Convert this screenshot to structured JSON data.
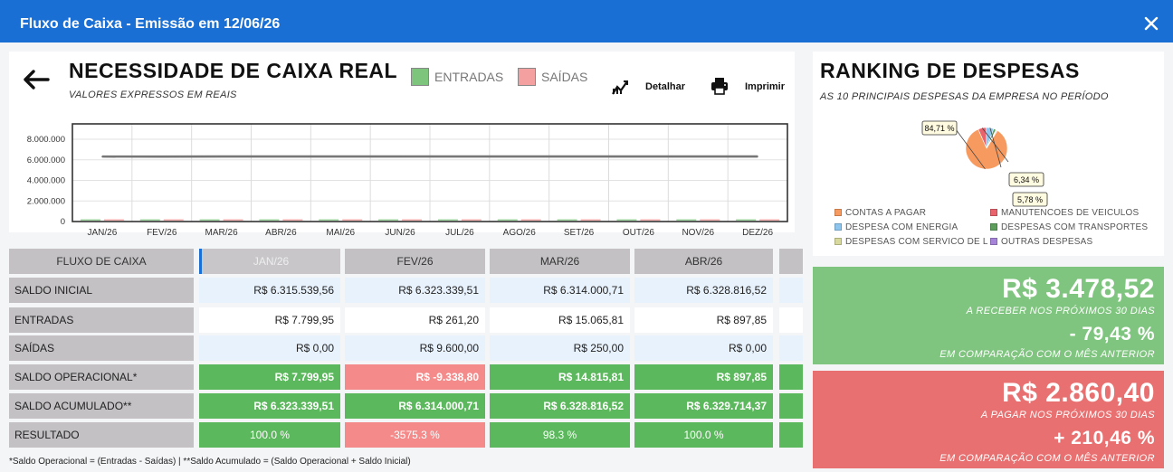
{
  "window": {
    "title": "Fluxo de Caixa - Emissão em 12/06/26"
  },
  "header": {
    "title": "NECESSIDADE DE CAIXA REAL",
    "subtitle": "VALORES EXPRESSOS EM REAIS",
    "legend": [
      {
        "label": "ENTRADAS",
        "color": "#7dc47d"
      },
      {
        "label": "SAÍDAS",
        "color": "#f5a0a0"
      }
    ],
    "detail_label": "Detalhar",
    "print_label": "Imprimir"
  },
  "chart_data": {
    "type": "line",
    "categories": [
      "JAN/26",
      "FEV/26",
      "MAR/26",
      "ABR/26",
      "MAI/26",
      "JUN/26",
      "JUL/26",
      "AGO/26",
      "SET/26",
      "OUT/26",
      "NOV/26",
      "DEZ/26"
    ],
    "series": [
      {
        "values": [
          6323339.51,
          6314000.71,
          6328816.52,
          6329714.37,
          6329714.37,
          6329714.37,
          6329714.37,
          6329714.37,
          6329714.37,
          6329714.37,
          6329714.37,
          6329714.37
        ],
        "color": "#777777"
      }
    ],
    "bars_entradas": [
      7799.95,
      261.2,
      15065.81,
      897.85,
      0,
      0,
      0,
      0,
      0,
      0,
      0,
      0
    ],
    "bars_saidas": [
      0,
      9600.0,
      250.0,
      0,
      0,
      0,
      0,
      0,
      0,
      0,
      0,
      0
    ],
    "yticks": [
      {
        "value": 8000000,
        "label": "8.000.000"
      },
      {
        "value": 6000000,
        "label": "6.000.000"
      },
      {
        "value": 4000000,
        "label": "4.000.000"
      },
      {
        "value": 2000000,
        "label": "2.000.000"
      },
      {
        "value": 0,
        "label": "0"
      }
    ],
    "ylim": [
      0,
      9500000
    ],
    "grid": true
  },
  "ranking": {
    "title": "RANKING DE DESPESAS",
    "subtitle": "AS 10 PRINCIPAIS DESPESAS DA EMPRESA NO PERÍODO",
    "slices": [
      {
        "label": "CONTAS A PAGAR",
        "value": 84.71,
        "color": "#f79a5f"
      },
      {
        "label": "MANUTENÇÕES DE VEÍCULOS",
        "value": 6.34,
        "color": "#e8636c"
      },
      {
        "label": "DESPESA COM ENERGIA",
        "value": 5.78,
        "color": "#8ec5ee"
      },
      {
        "label": "DESPESAS COM TRANSPORTES",
        "value": 1.9,
        "color": "#5d9e5d"
      },
      {
        "label": "DESPESAS COM SERVICO DE L",
        "value": 0.7,
        "color": "#d8d99c"
      },
      {
        "label": "OUTRAS DESPESAS",
        "value": 0.57,
        "color": "#a584d9"
      }
    ],
    "callouts": [
      "84,71 %",
      "6,34 %",
      "5,78 %"
    ],
    "legend_display": [
      "CONTAS A PAGAR",
      "MANUTENCOES DE VEICULOS",
      "DESPESA COM ENERGIA",
      "DESPESAS COM TRANSPORTES",
      "DESPESAS COM SERVICO DE L",
      "OUTRAS DESPESAS"
    ]
  },
  "table": {
    "header_label": "FLUXO DE CAIXA",
    "months": [
      "JAN/26",
      "FEV/26",
      "MAR/26",
      "ABR/26"
    ],
    "rows": [
      {
        "label": "SALDO INICIAL",
        "values": [
          "R$ 6.315.539,56",
          "R$ 6.323.339,51",
          "R$ 6.314.000,71",
          "R$ 6.328.816,52"
        ]
      },
      {
        "label": "ENTRADAS",
        "values": [
          "R$ 7.799,95",
          "R$ 261,20",
          "R$ 15.065,81",
          "R$ 897,85"
        ]
      },
      {
        "label": "SAÍDAS",
        "values": [
          "R$ 0,00",
          "R$ 9.600,00",
          "R$ 250,00",
          "R$ 0,00"
        ]
      },
      {
        "label": "SALDO OPERACIONAL*",
        "values": [
          "R$ 7.799,95",
          "R$ -9.338,80",
          "R$ 14.815,81",
          "R$ 897,85"
        ]
      },
      {
        "label": "SALDO ACUMULADO**",
        "values": [
          "R$ 6.323.339,51",
          "R$ 6.314.000,71",
          "R$ 6.328.816,52",
          "R$ 6.329.714,37"
        ]
      },
      {
        "label": "RESULTADO",
        "values": [
          "100.0 %",
          "-3575.3 %",
          "98.3 %",
          "100.0 %"
        ]
      }
    ],
    "footnote": "*Saldo Operacional = (Entradas - Saídas) | **Saldo Acumulado = (Saldo Operacional + Saldo Inicial)"
  },
  "receivable": {
    "amount": "R$ 3.478,52",
    "label": "A RECEBER NOS PRÓXIMOS 30 DIAS",
    "change": "- 79,43 %",
    "change_label": "EM COMPARAÇÃO COM O MÊS ANTERIOR",
    "color": "#7fc47f"
  },
  "payable": {
    "amount": "R$ 2.860,40",
    "label": "A PAGAR NOS PRÓXIMOS 30 DIAS",
    "change": "+ 210,46 %",
    "change_label": "EM COMPARAÇÃO COM O MÊS ANTERIOR",
    "color": "#e97070"
  }
}
